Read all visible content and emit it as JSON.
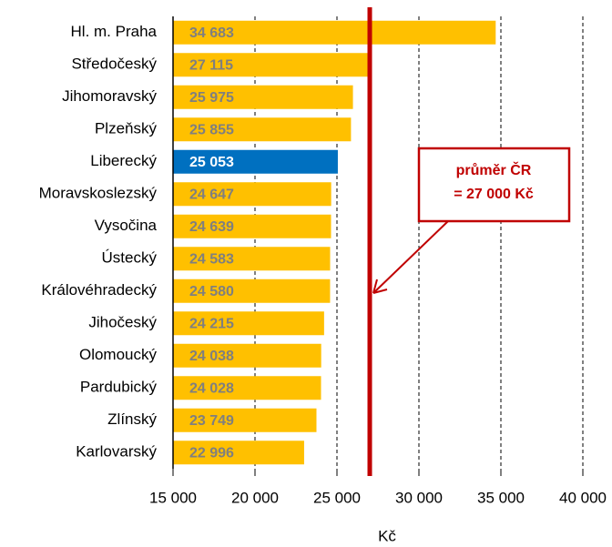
{
  "chart_data": {
    "type": "bar",
    "orientation": "horizontal",
    "categories": [
      "Hl. m. Praha",
      "Středočeský",
      "Jihomoravský",
      "Plzeňský",
      "Liberecký",
      "Moravskoslezský",
      "Vysočina",
      "Ústecký",
      "Královéhradecký",
      "Jihočeský",
      "Olomoucký",
      "Pardubický",
      "Zlínský",
      "Karlovarský"
    ],
    "values": [
      34683,
      27115,
      25975,
      25855,
      25053,
      24647,
      24639,
      24583,
      24580,
      24215,
      24038,
      24028,
      23749,
      22996
    ],
    "value_labels": [
      "34 683",
      "27 115",
      "25 975",
      "25 855",
      "25 053",
      "24 647",
      "24 639",
      "24 583",
      "24 580",
      "24 215",
      "24 038",
      "24 028",
      "23 749",
      "22 996"
    ],
    "colors": [
      "#ffc000",
      "#ffc000",
      "#ffc000",
      "#ffc000",
      "#0070c0",
      "#ffc000",
      "#ffc000",
      "#ffc000",
      "#ffc000",
      "#ffc000",
      "#ffc000",
      "#ffc000",
      "#ffc000",
      "#ffc000"
    ],
    "xlim": [
      15000,
      40000
    ],
    "xticks": [
      {
        "value": 15000,
        "label": "15 000"
      },
      {
        "value": 20000,
        "label": "20 000"
      },
      {
        "value": 25000,
        "label": "25 000"
      },
      {
        "value": 30000,
        "label": "30 000"
      },
      {
        "value": 35000,
        "label": "35 000"
      },
      {
        "value": 40000,
        "label": "40 000"
      }
    ],
    "xlabel": "Kč",
    "grid": true,
    "average": 27000,
    "average_color": "#c00000",
    "annotation": [
      "průměr ČR",
      "= 27 000 Kč"
    ]
  }
}
